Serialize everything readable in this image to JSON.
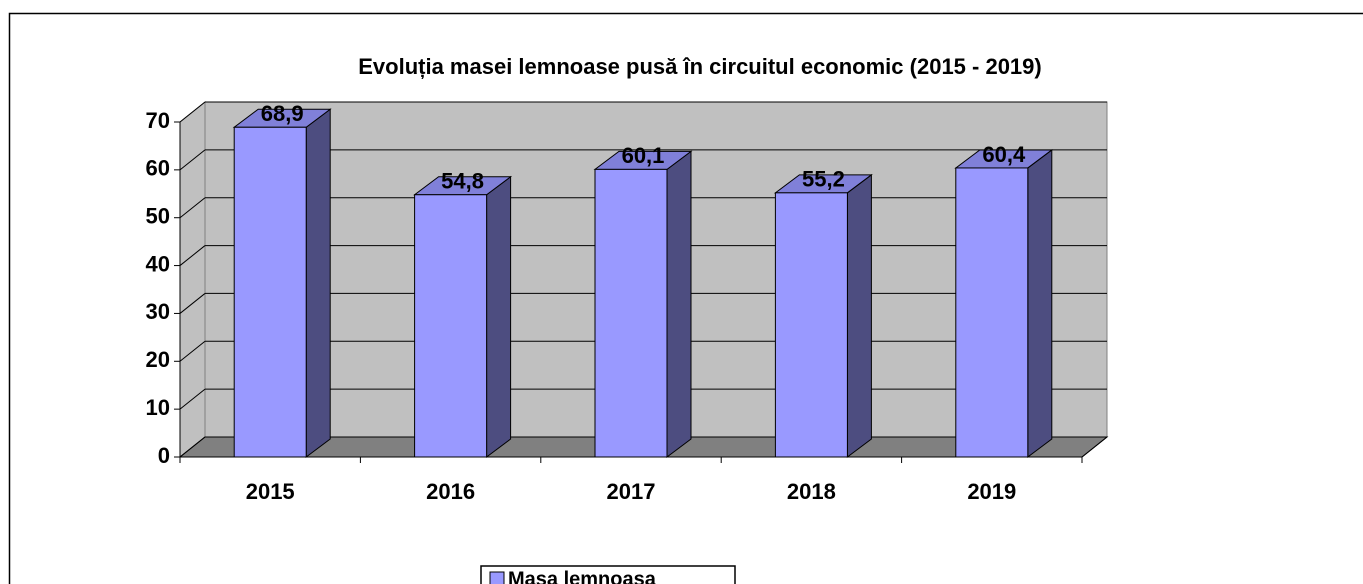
{
  "chart_data": {
    "type": "bar3d",
    "title": "Evoluția masei lemnoase pusă în circuitul economic (2015 - 2019)",
    "categories": [
      "2015",
      "2016",
      "2017",
      "2018",
      "2019"
    ],
    "series": [
      {
        "name": "Masa lemnoasa",
        "color": "#9999ff",
        "values": [
          68.9,
          54.8,
          60.1,
          55.2,
          60.4
        ],
        "value_labels": [
          "68,9",
          "54,8",
          "60,1",
          "55,2",
          "60,4"
        ]
      }
    ],
    "ylim": [
      0,
      70
    ],
    "yticks": [
      0,
      10,
      20,
      30,
      40,
      50,
      60,
      70
    ],
    "grid": true,
    "legend": "bottom"
  }
}
